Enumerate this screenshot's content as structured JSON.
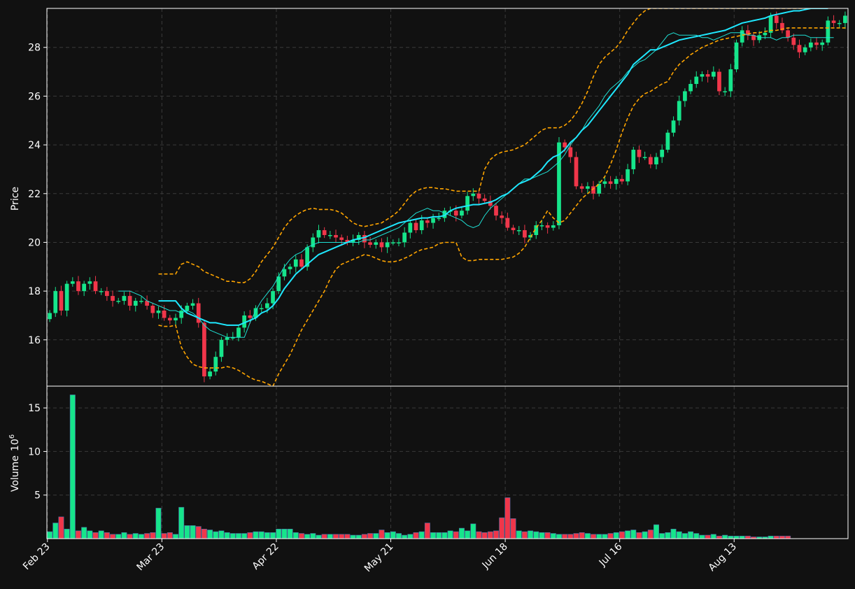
{
  "chart_data": [
    {
      "panel": "price",
      "type": "candlestick",
      "ylabel": "Price",
      "ylim": [
        14.1,
        29.6
      ],
      "yticks": [
        "16",
        "18",
        "20",
        "22",
        "24",
        "26",
        "28"
      ],
      "xtick_labels": [
        "Feb 23",
        "Mar 23",
        "Apr 22",
        "May 21",
        "Jun 18",
        "Jul 16",
        "Aug 13"
      ],
      "xtick_index": [
        0,
        20,
        40,
        60,
        80,
        100,
        120
      ],
      "grid": true,
      "colors": {
        "up": "#16e58b",
        "down": "#f0364a",
        "ma_fast": "#1fe0d4",
        "ma_slow": "#1fe8ff",
        "bands": "#ffa500",
        "background": "#111111",
        "grid": "#3a3a3a"
      },
      "close": [
        17.1,
        18.0,
        17.2,
        18.3,
        18.4,
        18.0,
        18.3,
        18.4,
        18.0,
        18.0,
        17.8,
        17.6,
        17.6,
        17.8,
        17.4,
        17.6,
        17.6,
        17.4,
        17.1,
        17.2,
        16.9,
        16.8,
        16.9,
        17.2,
        17.4,
        17.5,
        16.7,
        14.5,
        14.7,
        15.3,
        16.0,
        16.1,
        16.1,
        16.5,
        17.0,
        16.9,
        17.3,
        17.3,
        17.5,
        18.0,
        18.6,
        18.9,
        19.0,
        19.3,
        19.0,
        19.8,
        20.2,
        20.5,
        20.3,
        20.3,
        20.2,
        20.1,
        20.0,
        20.1,
        20.3,
        20.0,
        19.9,
        20.0,
        19.8,
        20.0,
        20.0,
        20.0,
        20.4,
        20.8,
        20.5,
        20.9,
        20.8,
        21.0,
        21.0,
        21.3,
        21.3,
        21.1,
        21.3,
        21.9,
        22.0,
        21.8,
        21.7,
        21.5,
        21.1,
        21.0,
        20.6,
        20.5,
        20.5,
        20.2,
        20.3,
        20.7,
        20.7,
        20.6,
        20.7,
        24.1,
        23.9,
        23.5,
        22.3,
        22.2,
        22.3,
        22.0,
        22.4,
        22.5,
        22.4,
        22.6,
        22.5,
        23.0,
        23.8,
        23.5,
        23.5,
        23.2,
        23.5,
        23.8,
        24.5,
        25.0,
        25.8,
        26.2,
        26.5,
        26.8,
        26.9,
        26.8,
        27.0,
        26.2,
        26.2,
        27.1,
        28.2,
        28.7,
        28.5,
        28.3,
        28.5,
        28.6,
        29.3,
        29.0,
        28.7,
        28.4,
        28.1,
        27.8,
        28.0,
        28.2,
        28.1,
        28.2,
        29.1,
        29.0,
        29.0,
        29.3
      ],
      "ma_fast": [
        null,
        null,
        null,
        null,
        null,
        null,
        null,
        null,
        null,
        null,
        null,
        null,
        18.0,
        18.0,
        18.0,
        17.9,
        17.8,
        17.6,
        17.5,
        17.4,
        17.3,
        17.2,
        17.2,
        17.1,
        17.2,
        17.1,
        16.9,
        16.6,
        16.4,
        16.3,
        16.2,
        16.1,
        16.1,
        16.1,
        16.1,
        16.7,
        17.2,
        17.6,
        17.9,
        18.2,
        18.6,
        19.0,
        19.3,
        19.5,
        19.6,
        19.8,
        19.9,
        20.0,
        20.0,
        20.0,
        20.0,
        20.0,
        20.0,
        20.0,
        20.0,
        20.1,
        20.1,
        20.2,
        20.3,
        20.4,
        20.5,
        20.6,
        20.8,
        21.0,
        21.2,
        21.3,
        21.4,
        21.3,
        21.3,
        21.2,
        21.1,
        21.0,
        20.9,
        20.7,
        20.6,
        20.7,
        21.1,
        21.4,
        21.6,
        21.8,
        22.0,
        22.2,
        22.4,
        22.6,
        22.6,
        22.7,
        22.8,
        22.9,
        23.1,
        23.3,
        23.6,
        24.0,
        24.3,
        24.6,
        25.0,
        25.3,
        25.6,
        26.0,
        26.3,
        26.5,
        26.7,
        27.0,
        27.2,
        27.4,
        27.5,
        27.7,
        27.9,
        28.2,
        28.5,
        28.6,
        28.5,
        28.5,
        28.5,
        28.5,
        28.4,
        28.4,
        28.3,
        28.4,
        28.5,
        28.6,
        28.6,
        28.6,
        28.5,
        28.5,
        28.4,
        28.4,
        28.4,
        28.3,
        28.4,
        28.4,
        28.5,
        28.5,
        28.5,
        28.4,
        28.4,
        28.4,
        28.4,
        28.4
      ],
      "ma_slow": [
        null,
        null,
        null,
        null,
        null,
        null,
        null,
        null,
        null,
        null,
        null,
        null,
        null,
        null,
        null,
        null,
        null,
        null,
        null,
        17.6,
        17.6,
        17.6,
        17.6,
        17.3,
        17.1,
        17.0,
        16.9,
        16.8,
        16.7,
        16.7,
        16.65,
        16.6,
        16.6,
        16.6,
        16.7,
        16.8,
        16.9,
        17.1,
        17.2,
        17.4,
        17.7,
        18.1,
        18.4,
        18.7,
        18.9,
        19.1,
        19.3,
        19.5,
        19.6,
        19.7,
        19.8,
        19.9,
        20.0,
        20.1,
        20.15,
        20.2,
        20.3,
        20.4,
        20.5,
        20.6,
        20.7,
        20.8,
        20.85,
        20.9,
        20.95,
        21.0,
        21.0,
        21.05,
        21.05,
        21.1,
        21.3,
        21.4,
        21.45,
        21.5,
        21.55,
        21.55,
        21.6,
        21.65,
        21.75,
        21.9,
        22.0,
        22.2,
        22.4,
        22.5,
        22.6,
        22.8,
        23.0,
        23.3,
        23.5,
        23.6,
        23.8,
        24.1,
        24.3,
        24.6,
        24.8,
        25.1,
        25.4,
        25.7,
        26.0,
        26.3,
        26.6,
        26.9,
        27.3,
        27.5,
        27.7,
        27.9,
        27.9,
        28.0,
        28.1,
        28.2,
        28.3,
        28.35,
        28.4,
        28.45,
        28.5,
        28.55,
        28.6,
        28.65,
        28.7,
        28.8,
        28.9,
        29.0,
        29.05,
        29.1,
        29.15,
        29.2,
        29.3,
        29.35,
        29.4,
        29.45,
        29.5,
        29.5,
        29.55,
        29.6,
        29.6,
        29.6,
        29.6
      ],
      "upper_band": [
        null,
        null,
        null,
        null,
        null,
        null,
        null,
        null,
        null,
        null,
        null,
        null,
        null,
        null,
        null,
        null,
        null,
        null,
        null,
        18.7,
        18.7,
        18.7,
        18.7,
        19.1,
        19.2,
        19.1,
        19.0,
        18.8,
        18.7,
        18.6,
        18.5,
        18.4,
        18.4,
        18.35,
        18.35,
        18.5,
        18.8,
        19.2,
        19.5,
        19.8,
        20.2,
        20.6,
        20.9,
        21.1,
        21.25,
        21.35,
        21.4,
        21.35,
        21.35,
        21.35,
        21.3,
        21.2,
        21.0,
        20.8,
        20.7,
        20.65,
        20.7,
        20.75,
        20.8,
        20.95,
        21.1,
        21.3,
        21.6,
        21.9,
        22.1,
        22.2,
        22.25,
        22.25,
        22.2,
        22.2,
        22.15,
        22.1,
        22.1,
        22.1,
        22.1,
        22.1,
        23.0,
        23.4,
        23.6,
        23.7,
        23.75,
        23.8,
        23.9,
        24.0,
        24.2,
        24.4,
        24.6,
        24.7,
        24.7,
        24.7,
        24.8,
        25.0,
        25.3,
        25.7,
        26.2,
        26.8,
        27.3,
        27.6,
        27.8,
        28.0,
        28.3,
        28.7,
        29.0,
        29.3,
        29.5,
        29.6,
        29.6,
        29.6,
        29.6,
        29.6,
        29.6,
        29.6,
        29.6,
        29.6,
        29.6,
        29.6,
        29.6,
        29.6,
        29.6,
        29.6,
        29.6,
        29.6,
        29.6,
        29.6,
        29.6,
        29.6,
        29.6,
        29.6,
        29.6,
        29.6,
        29.6,
        29.6,
        29.6,
        29.6,
        29.6,
        29.6,
        29.6
      ],
      "lower_band": [
        null,
        null,
        null,
        null,
        null,
        null,
        null,
        null,
        null,
        null,
        null,
        null,
        null,
        null,
        null,
        null,
        null,
        null,
        null,
        16.6,
        16.55,
        16.55,
        16.6,
        15.7,
        15.3,
        15.0,
        14.9,
        14.85,
        14.85,
        14.85,
        14.85,
        14.9,
        14.85,
        14.75,
        14.6,
        14.45,
        14.35,
        14.3,
        14.2,
        14.1,
        14.6,
        15.0,
        15.4,
        15.9,
        16.4,
        16.8,
        17.2,
        17.6,
        18.0,
        18.5,
        18.9,
        19.1,
        19.2,
        19.3,
        19.4,
        19.5,
        19.45,
        19.35,
        19.25,
        19.2,
        19.2,
        19.25,
        19.35,
        19.45,
        19.6,
        19.7,
        19.75,
        19.8,
        19.95,
        20.0,
        20.0,
        20.0,
        19.4,
        19.25,
        19.25,
        19.3,
        19.3,
        19.3,
        19.3,
        19.3,
        19.35,
        19.4,
        19.55,
        19.8,
        20.2,
        20.6,
        20.9,
        21.3,
        21.0,
        20.8,
        20.9,
        21.2,
        21.5,
        21.8,
        22.0,
        22.2,
        22.4,
        22.7,
        23.2,
        23.8,
        24.5,
        25.1,
        25.6,
        25.9,
        26.1,
        26.2,
        26.35,
        26.5,
        26.6,
        27.0,
        27.3,
        27.5,
        27.7,
        27.85,
        28.0,
        28.1,
        28.2,
        28.3,
        28.35,
        28.4,
        28.45,
        28.5,
        28.55,
        28.6,
        28.6,
        28.65,
        28.7,
        28.7,
        28.75,
        28.8,
        28.8,
        28.8,
        28.8,
        28.8,
        28.8,
        28.8,
        28.8,
        28.8,
        28.8,
        28.8,
        28.8,
        28.8
      ]
    },
    {
      "panel": "volume",
      "type": "bar",
      "ylabel": "Volume",
      "yunit": "10",
      "yunit_exp": "6",
      "ylim": [
        0,
        17.5
      ],
      "yticks": [
        "5",
        "10",
        "15"
      ],
      "values": [
        0.8,
        1.8,
        2.5,
        1.1,
        16.5,
        0.9,
        1.3,
        0.9,
        0.7,
        0.9,
        0.7,
        0.5,
        0.5,
        0.7,
        0.5,
        0.6,
        0.5,
        0.6,
        0.7,
        3.5,
        0.6,
        0.7,
        0.5,
        3.6,
        1.5,
        1.5,
        1.4,
        1.1,
        1.0,
        0.8,
        0.9,
        0.7,
        0.6,
        0.6,
        0.6,
        0.7,
        0.8,
        0.8,
        0.7,
        0.7,
        1.1,
        1.1,
        1.1,
        0.7,
        0.6,
        0.5,
        0.6,
        0.4,
        0.5,
        0.5,
        0.5,
        0.5,
        0.5,
        0.4,
        0.4,
        0.5,
        0.6,
        0.6,
        1.0,
        0.7,
        0.8,
        0.6,
        0.4,
        0.5,
        0.7,
        0.8,
        1.8,
        0.7,
        0.7,
        0.7,
        0.9,
        0.8,
        1.2,
        0.9,
        1.7,
        0.8,
        0.7,
        0.8,
        0.9,
        2.4,
        4.7,
        2.3,
        0.9,
        0.8,
        0.9,
        0.8,
        0.7,
        0.7,
        0.6,
        0.5,
        0.5,
        0.5,
        0.6,
        0.7,
        0.6,
        0.5,
        0.5,
        0.5,
        0.6,
        0.7,
        0.8,
        0.9,
        1.0,
        0.7,
        0.8,
        1.0,
        1.6,
        0.6,
        0.7,
        1.1,
        0.8,
        0.6,
        0.8,
        0.6,
        0.4,
        0.4,
        0.5,
        0.3,
        0.4,
        0.3,
        0.3,
        0.3,
        0.3,
        0.2,
        0.2,
        0.2,
        0.3,
        0.3,
        0.3,
        0.3
      ],
      "grid": true
    }
  ]
}
